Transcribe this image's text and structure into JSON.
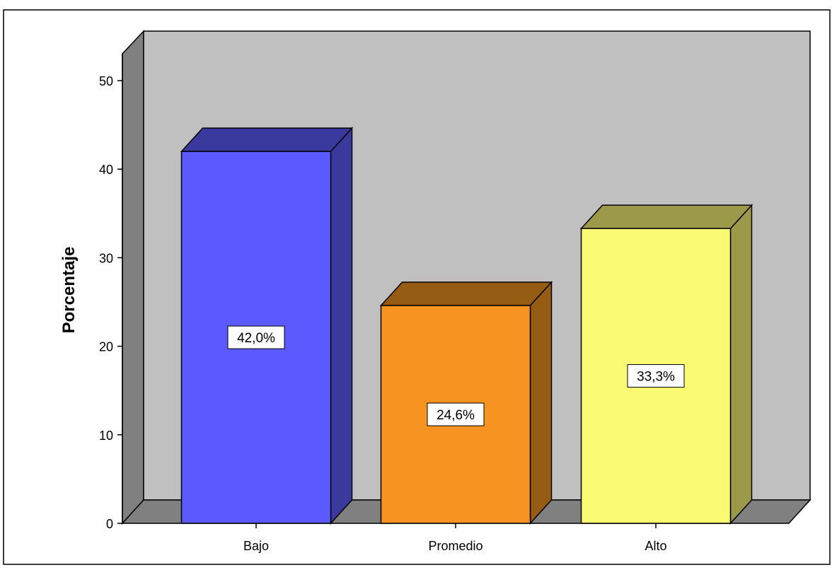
{
  "chart_data": {
    "type": "bar",
    "categories": [
      "Bajo",
      "Promedio",
      "Alto"
    ],
    "values": [
      42.0,
      24.6,
      33.3
    ],
    "data_labels": [
      "42,0%",
      "24,6%",
      "33,3%"
    ],
    "ylabel": "Porcentaje",
    "xlabel": "",
    "ylim": [
      0,
      50
    ],
    "yticks": [
      0,
      10,
      20,
      30,
      40,
      50
    ],
    "ytick_labels": [
      "0",
      "10",
      "20",
      "30",
      "40",
      "50"
    ],
    "style": "3d",
    "grid": false,
    "colors": {
      "plot_background": "#c0c0c0",
      "side_wall": "#808080",
      "floor": "#808080",
      "bars": [
        {
          "front": "#5a5aff",
          "side": "#3a3a9e",
          "top": "#3a3a9e"
        },
        {
          "front": "#f79421",
          "side": "#975c14",
          "top": "#975c14"
        },
        {
          "front": "#fafa73",
          "side": "#9c9a4a",
          "top": "#9c9a4a"
        }
      ]
    }
  }
}
